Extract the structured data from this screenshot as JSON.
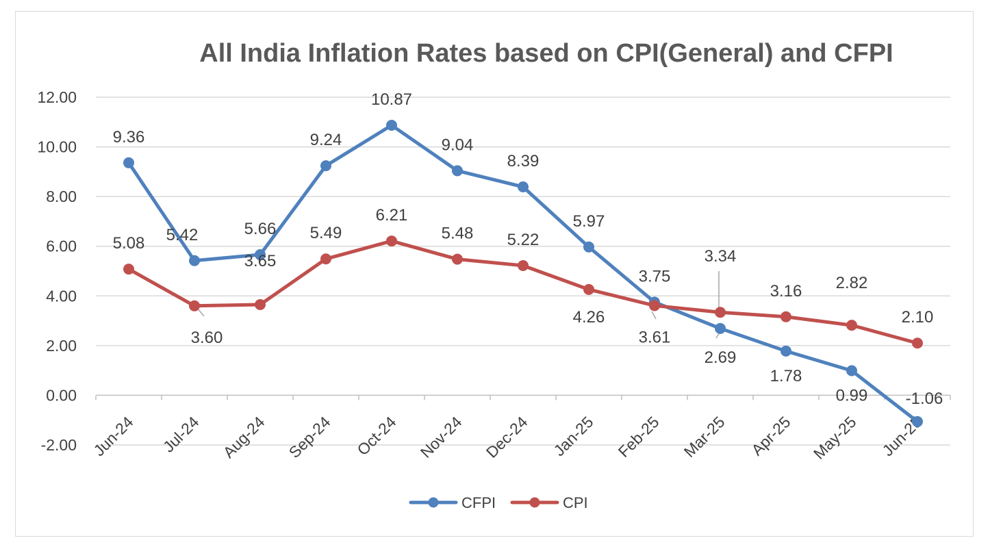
{
  "chart_data": {
    "type": "line",
    "title": "All India Inflation Rates based on CPI(General) and CFPI",
    "categories": [
      "Jun-24",
      "Jul-24",
      "Aug-24",
      "Sep-24",
      "Oct-24",
      "Nov-24",
      "Dec-24",
      "Jan-25",
      "Feb-25",
      "Mar-25",
      "Apr-25",
      "May-25",
      "Jun-25"
    ],
    "y_ticks": [
      "-2.00",
      "0.00",
      "2.00",
      "4.00",
      "6.00",
      "8.00",
      "10.00",
      "12.00"
    ],
    "ylim": [
      -2,
      12
    ],
    "grid": true,
    "legend_position": "bottom",
    "series": [
      {
        "name": "CFPI",
        "color": "#4f81bd",
        "values": [
          9.36,
          5.42,
          5.66,
          9.24,
          10.87,
          9.04,
          8.39,
          5.97,
          3.75,
          2.69,
          1.78,
          0.99,
          -1.06
        ],
        "labels": [
          "9.36",
          "5.42",
          "5.66",
          "9.24",
          "10.87",
          "9.04",
          "8.39",
          "5.97",
          "3.75",
          "2.69",
          "1.78",
          "0.99",
          "-1.06"
        ]
      },
      {
        "name": "CPI",
        "color": "#c0504d",
        "values": [
          5.08,
          3.6,
          3.65,
          5.49,
          6.21,
          5.48,
          5.22,
          4.26,
          3.61,
          3.34,
          3.16,
          2.82,
          2.1
        ],
        "labels": [
          "5.08",
          "3.60",
          "3.65",
          "5.49",
          "6.21",
          "5.48",
          "5.22",
          "4.26",
          "3.61",
          "3.34",
          "3.16",
          "2.82",
          "2.10"
        ]
      }
    ]
  }
}
